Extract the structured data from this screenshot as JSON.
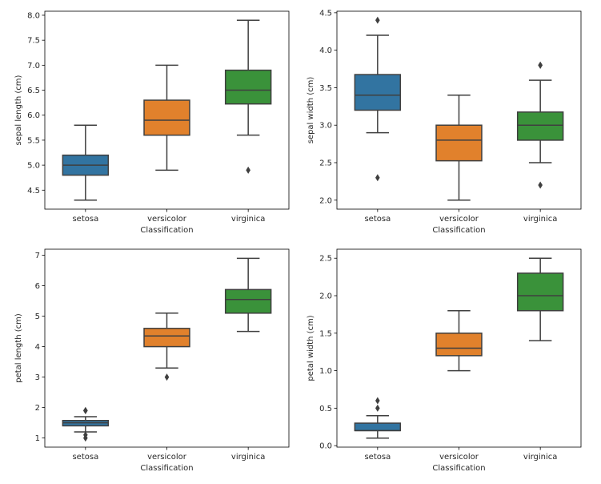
{
  "chart_data": [
    {
      "type": "box",
      "xlabel": "Classification",
      "ylabel": "sepal length (cm)",
      "categories": [
        "setosa",
        "versicolor",
        "virginica"
      ],
      "colors": [
        "#3274a1",
        "#e1812c",
        "#3a923a"
      ],
      "ylim": [
        4.12,
        8.08
      ],
      "yticks": [
        4.5,
        5.0,
        5.5,
        6.0,
        6.5,
        7.0,
        7.5,
        8.0
      ],
      "ytick_labels": [
        "4.5",
        "5.0",
        "5.5",
        "6.0",
        "6.5",
        "7.0",
        "7.5",
        "8.0"
      ],
      "boxes": [
        {
          "category": "setosa",
          "whisker_low": 4.3,
          "q1": 4.8,
          "median": 5.0,
          "q3": 5.2,
          "whisker_high": 5.8,
          "outliers": []
        },
        {
          "category": "versicolor",
          "whisker_low": 4.9,
          "q1": 5.6,
          "median": 5.9,
          "q3": 6.3,
          "whisker_high": 7.0,
          "outliers": []
        },
        {
          "category": "virginica",
          "whisker_low": 5.6,
          "q1": 6.225,
          "median": 6.5,
          "q3": 6.9,
          "whisker_high": 7.9,
          "outliers": [
            4.9
          ]
        }
      ]
    },
    {
      "type": "box",
      "xlabel": "Classification",
      "ylabel": "sepal width (cm)",
      "categories": [
        "setosa",
        "versicolor",
        "virginica"
      ],
      "colors": [
        "#3274a1",
        "#e1812c",
        "#3a923a"
      ],
      "ylim": [
        1.88,
        4.52
      ],
      "yticks": [
        2.0,
        2.5,
        3.0,
        3.5,
        4.0,
        4.5
      ],
      "ytick_labels": [
        "2.0",
        "2.5",
        "3.0",
        "3.5",
        "4.0",
        "4.5"
      ],
      "boxes": [
        {
          "category": "setosa",
          "whisker_low": 2.9,
          "q1": 3.2,
          "median": 3.4,
          "q3": 3.675,
          "whisker_high": 4.2,
          "outliers": [
            4.4,
            2.3
          ]
        },
        {
          "category": "versicolor",
          "whisker_low": 2.0,
          "q1": 2.525,
          "median": 2.8,
          "q3": 3.0,
          "whisker_high": 3.4,
          "outliers": []
        },
        {
          "category": "virginica",
          "whisker_low": 2.5,
          "q1": 2.8,
          "median": 3.0,
          "q3": 3.175,
          "whisker_high": 3.6,
          "outliers": [
            3.8,
            3.8,
            2.2
          ]
        }
      ]
    },
    {
      "type": "box",
      "xlabel": "Classification",
      "ylabel": "petal length (cm)",
      "categories": [
        "setosa",
        "versicolor",
        "virginica"
      ],
      "colors": [
        "#3274a1",
        "#e1812c",
        "#3a923a"
      ],
      "ylim": [
        0.7,
        7.2
      ],
      "yticks": [
        1,
        2,
        3,
        4,
        5,
        6,
        7
      ],
      "ytick_labels": [
        "1",
        "2",
        "3",
        "4",
        "5",
        "6",
        "7"
      ],
      "boxes": [
        {
          "category": "setosa",
          "whisker_low": 1.2,
          "q1": 1.4,
          "median": 1.5,
          "q3": 1.575,
          "whisker_high": 1.7,
          "outliers": [
            1.9,
            1.9,
            1.1,
            1.0
          ]
        },
        {
          "category": "versicolor",
          "whisker_low": 3.3,
          "q1": 4.0,
          "median": 4.35,
          "q3": 4.6,
          "whisker_high": 5.1,
          "outliers": [
            3.0
          ]
        },
        {
          "category": "virginica",
          "whisker_low": 4.5,
          "q1": 5.1,
          "median": 5.55,
          "q3": 5.875,
          "whisker_high": 6.9,
          "outliers": []
        }
      ]
    },
    {
      "type": "box",
      "xlabel": "Classification",
      "ylabel": "petal width (cm)",
      "categories": [
        "setosa",
        "versicolor",
        "virginica"
      ],
      "colors": [
        "#3274a1",
        "#e1812c",
        "#3a923a"
      ],
      "ylim": [
        -0.02,
        2.62
      ],
      "yticks": [
        0.0,
        0.5,
        1.0,
        1.5,
        2.0,
        2.5
      ],
      "ytick_labels": [
        "0.0",
        "0.5",
        "1.0",
        "1.5",
        "2.0",
        "2.5"
      ],
      "boxes": [
        {
          "category": "setosa",
          "whisker_low": 0.1,
          "q1": 0.2,
          "median": 0.2,
          "q3": 0.3,
          "whisker_high": 0.4,
          "outliers": [
            0.5,
            0.6
          ]
        },
        {
          "category": "versicolor",
          "whisker_low": 1.0,
          "q1": 1.2,
          "median": 1.3,
          "q3": 1.5,
          "whisker_high": 1.8,
          "outliers": []
        },
        {
          "category": "virginica",
          "whisker_low": 1.4,
          "q1": 1.8,
          "median": 2.0,
          "q3": 2.3,
          "whisker_high": 2.5,
          "outliers": []
        }
      ]
    }
  ]
}
